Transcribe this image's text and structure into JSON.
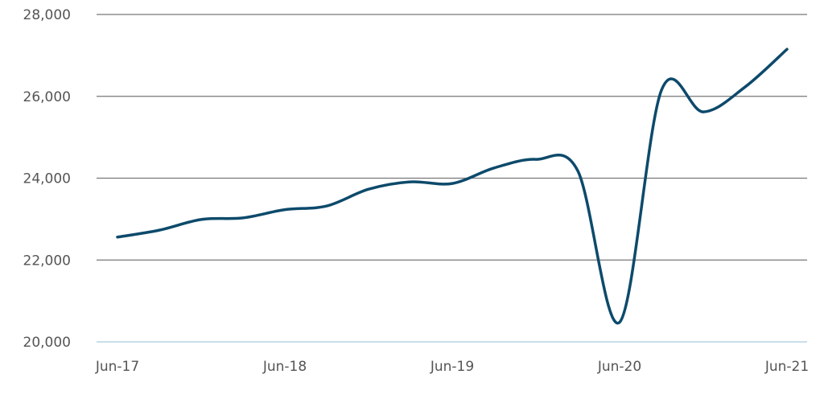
{
  "chart_data": {
    "type": "line",
    "title": "",
    "xlabel": "",
    "ylabel": "",
    "ylim": [
      20000,
      28000
    ],
    "y_ticks": [
      20000,
      22000,
      24000,
      26000,
      28000
    ],
    "y_tick_labels": [
      "20,000",
      "22,000",
      "24,000",
      "26,000",
      "28,000"
    ],
    "x_tick_labels": [
      "Jun-17",
      "Jun-18",
      "Jun-19",
      "Jun-20",
      "Jun-21"
    ],
    "x_tick_positions": [
      0,
      4,
      8,
      12,
      16
    ],
    "grid": true,
    "legend": "none",
    "line_color": "#0d4a6b",
    "grid_color": "#777777",
    "baseline_color": "#b9d3e3",
    "x": [
      "Jun-17",
      "Sep-17",
      "Dec-17",
      "Mar-18",
      "Jun-18",
      "Sep-18",
      "Dec-18",
      "Mar-19",
      "Jun-19",
      "Sep-19",
      "Dec-19",
      "Mar-20",
      "Jun-20",
      "Sep-20",
      "Dec-20",
      "Mar-21",
      "Jun-21"
    ],
    "series": [
      {
        "values": [
          22560,
          22730,
          22990,
          23030,
          23230,
          23320,
          23730,
          23910,
          23870,
          24250,
          24460,
          24180,
          20480,
          26150,
          25620,
          26230,
          27150
        ]
      }
    ]
  }
}
